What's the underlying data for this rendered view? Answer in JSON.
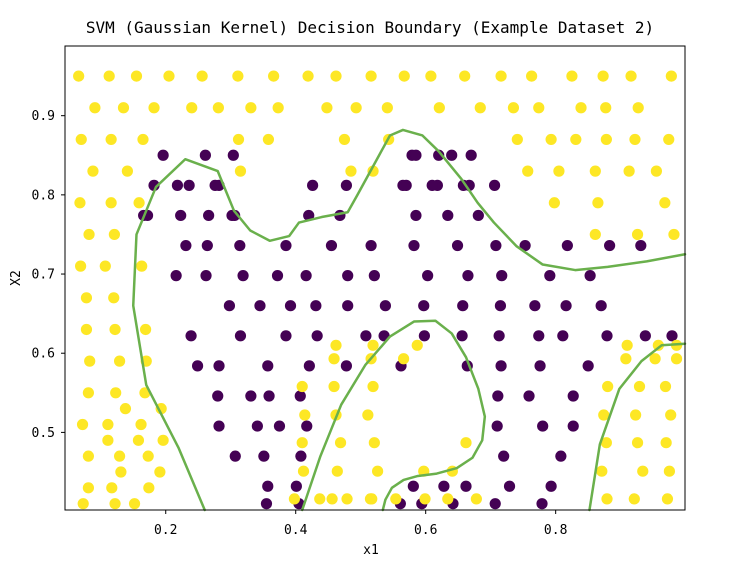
{
  "chart_data": {
    "type": "scatter",
    "title": "SVM (Gaussian Kernel) Decision Boundary (Example Dataset 2)",
    "xlabel": "x1",
    "ylabel": "X2",
    "xlim": [
      0.045,
      0.999
    ],
    "ylim": [
      0.402,
      0.988
    ],
    "xticks": [
      0.2,
      0.4,
      0.6,
      0.8
    ],
    "yticks": [
      0.5,
      0.6,
      0.7,
      0.8,
      0.9
    ],
    "xtick_labels": [
      "0.2",
      "0.4",
      "0.6",
      "0.8"
    ],
    "ytick_labels": [
      "0.5",
      "0.6",
      "0.7",
      "0.8",
      "0.9"
    ],
    "grid": false,
    "legend": "none",
    "colors": {
      "class_0": "#440154",
      "class_1": "#fde725",
      "boundary": "#6ab04c"
    },
    "series": [
      {
        "class": 0,
        "color": "#440154",
        "x": [
          0.298,
          0.345,
          0.392,
          0.431,
          0.48,
          0.538,
          0.597,
          0.657,
          0.715,
          0.768,
          0.816,
          0.87,
          0.216,
          0.262,
          0.319,
          0.372,
          0.416,
          0.48,
          0.521,
          0.603,
          0.665,
          0.717,
          0.791,
          0.853,
          0.239,
          0.315,
          0.385,
          0.433,
          0.508,
          0.536,
          0.598,
          0.656,
          0.713,
          0.774,
          0.811,
          0.879,
          0.938,
          0.979,
          0.231,
          0.264,
          0.314,
          0.385,
          0.455,
          0.516,
          0.582,
          0.649,
          0.708,
          0.753,
          0.818,
          0.883,
          0.931,
          0.249,
          0.282,
          0.357,
          0.421,
          0.478,
          0.562,
          0.664,
          0.716,
          0.776,
          0.85,
          0.28,
          0.331,
          0.359,
          0.407,
          0.711,
          0.759,
          0.827,
          0.282,
          0.341,
          0.375,
          0.417,
          0.71,
          0.78,
          0.827,
          0.307,
          0.351,
          0.408,
          0.72,
          0.808,
          0.357,
          0.401,
          0.581,
          0.628,
          0.662,
          0.729,
          0.793,
          0.355,
          0.405,
          0.561,
          0.594,
          0.642,
          0.707,
          0.779,
          0.172,
          0.223,
          0.266,
          0.306,
          0.182,
          0.236,
          0.282,
          0.166,
          0.218,
          0.276,
          0.302,
          0.196,
          0.261,
          0.304,
          0.42,
          0.468,
          0.426,
          0.478,
          0.585,
          0.634,
          0.681,
          0.57,
          0.618,
          0.667,
          0.706,
          0.579,
          0.62,
          0.67,
          0.585,
          0.64,
          0.565,
          0.61,
          0.658
        ],
        "y": [
          0.66,
          0.66,
          0.66,
          0.66,
          0.66,
          0.66,
          0.66,
          0.66,
          0.66,
          0.66,
          0.66,
          0.66,
          0.698,
          0.698,
          0.698,
          0.698,
          0.698,
          0.698,
          0.698,
          0.698,
          0.698,
          0.698,
          0.698,
          0.698,
          0.622,
          0.622,
          0.622,
          0.622,
          0.622,
          0.622,
          0.622,
          0.622,
          0.622,
          0.622,
          0.622,
          0.622,
          0.622,
          0.622,
          0.736,
          0.736,
          0.736,
          0.736,
          0.736,
          0.736,
          0.736,
          0.736,
          0.736,
          0.736,
          0.736,
          0.736,
          0.736,
          0.584,
          0.584,
          0.584,
          0.584,
          0.584,
          0.584,
          0.584,
          0.584,
          0.584,
          0.584,
          0.546,
          0.546,
          0.546,
          0.546,
          0.546,
          0.546,
          0.546,
          0.508,
          0.508,
          0.508,
          0.508,
          0.508,
          0.508,
          0.508,
          0.47,
          0.47,
          0.47,
          0.47,
          0.47,
          0.432,
          0.432,
          0.432,
          0.432,
          0.432,
          0.432,
          0.432,
          0.41,
          0.41,
          0.41,
          0.41,
          0.41,
          0.41,
          0.41,
          0.774,
          0.774,
          0.774,
          0.774,
          0.812,
          0.812,
          0.812,
          0.774,
          0.812,
          0.812,
          0.774,
          0.85,
          0.85,
          0.85,
          0.774,
          0.774,
          0.812,
          0.812,
          0.774,
          0.774,
          0.774,
          0.812,
          0.812,
          0.812,
          0.812,
          0.85,
          0.85,
          0.85,
          0.85,
          0.85,
          0.812,
          0.812,
          0.812
        ]
      },
      {
        "class": 1,
        "color": "#fde725",
        "x": [
          0.066,
          0.113,
          0.155,
          0.205,
          0.256,
          0.311,
          0.366,
          0.419,
          0.462,
          0.516,
          0.567,
          0.608,
          0.66,
          0.716,
          0.763,
          0.825,
          0.873,
          0.916,
          0.978,
          0.091,
          0.135,
          0.182,
          0.24,
          0.281,
          0.331,
          0.373,
          0.448,
          0.493,
          0.541,
          0.621,
          0.684,
          0.735,
          0.774,
          0.839,
          0.877,
          0.927,
          0.07,
          0.116,
          0.165,
          0.312,
          0.358,
          0.475,
          0.543,
          0.741,
          0.793,
          0.831,
          0.878,
          0.922,
          0.974,
          0.088,
          0.141,
          0.315,
          0.485,
          0.519,
          0.757,
          0.805,
          0.861,
          0.913,
          0.955,
          0.068,
          0.116,
          0.159,
          0.798,
          0.865,
          0.968,
          0.082,
          0.121,
          0.861,
          0.926,
          0.982,
          0.069,
          0.107,
          0.163,
          0.078,
          0.12,
          0.078,
          0.122,
          0.169,
          0.083,
          0.129,
          0.17,
          0.081,
          0.123,
          0.168,
          0.072,
          0.111,
          0.162,
          0.081,
          0.129,
          0.173,
          0.081,
          0.117,
          0.174,
          0.073,
          0.122,
          0.152,
          0.131,
          0.191,
          0.111,
          0.158,
          0.196,
          0.138,
          0.193,
          0.398,
          0.456,
          0.515,
          0.412,
          0.464,
          0.526,
          0.41,
          0.469,
          0.521,
          0.414,
          0.462,
          0.511,
          0.41,
          0.459,
          0.519,
          0.459,
          0.516,
          0.566,
          0.462,
          0.519,
          0.587,
          0.437,
          0.479,
          0.517,
          0.554,
          0.599,
          0.634,
          0.678,
          0.597,
          0.641,
          0.662,
          0.879,
          0.921,
          0.972,
          0.871,
          0.934,
          0.975,
          0.878,
          0.926,
          0.97,
          0.874,
          0.923,
          0.977,
          0.88,
          0.929,
          0.969,
          0.908,
          0.953,
          0.986,
          0.91,
          0.958,
          0.986
        ],
        "y": [
          0.95,
          0.95,
          0.95,
          0.95,
          0.95,
          0.95,
          0.95,
          0.95,
          0.95,
          0.95,
          0.95,
          0.95,
          0.95,
          0.95,
          0.95,
          0.95,
          0.95,
          0.95,
          0.95,
          0.91,
          0.91,
          0.91,
          0.91,
          0.91,
          0.91,
          0.91,
          0.91,
          0.91,
          0.91,
          0.91,
          0.91,
          0.91,
          0.91,
          0.91,
          0.91,
          0.91,
          0.87,
          0.87,
          0.87,
          0.87,
          0.87,
          0.87,
          0.87,
          0.87,
          0.87,
          0.87,
          0.87,
          0.87,
          0.87,
          0.83,
          0.83,
          0.83,
          0.83,
          0.83,
          0.83,
          0.83,
          0.83,
          0.83,
          0.83,
          0.79,
          0.79,
          0.79,
          0.79,
          0.79,
          0.79,
          0.75,
          0.75,
          0.75,
          0.75,
          0.75,
          0.71,
          0.71,
          0.71,
          0.67,
          0.67,
          0.63,
          0.63,
          0.63,
          0.59,
          0.59,
          0.59,
          0.55,
          0.55,
          0.55,
          0.51,
          0.51,
          0.51,
          0.47,
          0.47,
          0.47,
          0.43,
          0.43,
          0.43,
          0.41,
          0.41,
          0.41,
          0.45,
          0.45,
          0.49,
          0.49,
          0.49,
          0.53,
          0.53,
          0.416,
          0.416,
          0.416,
          0.451,
          0.451,
          0.451,
          0.487,
          0.487,
          0.487,
          0.522,
          0.522,
          0.522,
          0.558,
          0.558,
          0.558,
          0.593,
          0.593,
          0.593,
          0.61,
          0.61,
          0.61,
          0.416,
          0.416,
          0.416,
          0.416,
          0.416,
          0.416,
          0.416,
          0.451,
          0.451,
          0.487,
          0.416,
          0.416,
          0.416,
          0.451,
          0.451,
          0.451,
          0.487,
          0.487,
          0.487,
          0.522,
          0.522,
          0.522,
          0.558,
          0.558,
          0.558,
          0.593,
          0.593,
          0.593,
          0.61,
          0.61,
          0.61
        ]
      }
    ],
    "boundaries": [
      {
        "x": [
          0.26,
          0.22,
          0.17,
          0.15,
          0.155,
          0.185,
          0.23,
          0.28,
          0.305,
          0.33,
          0.36,
          0.39,
          0.405,
          0.44,
          0.48,
          0.495,
          0.525,
          0.545,
          0.565,
          0.595,
          0.62,
          0.655,
          0.68,
          0.705,
          0.74,
          0.78,
          0.83,
          0.88,
          0.94,
          0.999
        ],
        "y": [
          0.402,
          0.48,
          0.56,
          0.66,
          0.75,
          0.81,
          0.845,
          0.83,
          0.78,
          0.755,
          0.742,
          0.748,
          0.765,
          0.772,
          0.778,
          0.8,
          0.845,
          0.875,
          0.882,
          0.875,
          0.855,
          0.82,
          0.79,
          0.765,
          0.735,
          0.712,
          0.705,
          0.709,
          0.716,
          0.725
        ]
      },
      {
        "x": [
          0.41,
          0.438,
          0.47,
          0.507,
          0.545,
          0.582,
          0.615,
          0.64,
          0.662,
          0.681,
          0.691,
          0.687,
          0.672,
          0.648,
          0.617,
          0.588,
          0.566,
          0.548,
          0.538,
          0.534
        ],
        "y": [
          0.402,
          0.47,
          0.535,
          0.585,
          0.621,
          0.64,
          0.641,
          0.625,
          0.595,
          0.555,
          0.52,
          0.49,
          0.468,
          0.455,
          0.448,
          0.445,
          0.44,
          0.43,
          0.415,
          0.402
        ]
      },
      {
        "x": [
          0.852,
          0.868,
          0.898,
          0.932,
          0.963,
          0.999
        ],
        "y": [
          0.402,
          0.485,
          0.555,
          0.59,
          0.61,
          0.612
        ]
      }
    ]
  }
}
